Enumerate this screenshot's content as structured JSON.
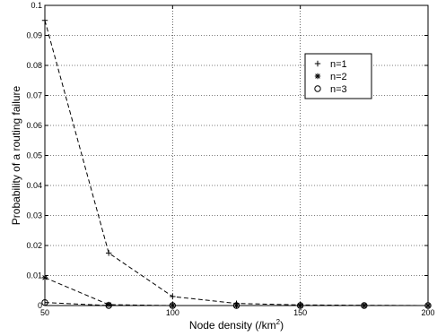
{
  "chart_data": {
    "type": "line",
    "title": "",
    "xlabel": "Node density (/km",
    "xlabel_sup": "2",
    "xlabel_suffix": ")",
    "ylabel": "Probability of a routing failure",
    "xlim": [
      50,
      200
    ],
    "ylim": [
      0,
      0.1
    ],
    "x_ticks": [
      "50",
      "100",
      "150",
      "200"
    ],
    "y_ticks": [
      "0",
      "0.01",
      "0.02",
      "0.03",
      "0.04",
      "0.05",
      "0.06",
      "0.07",
      "0.08",
      "0.09",
      "0.1"
    ],
    "grid": true,
    "legend_position": "upper-right",
    "line_style": "dashed",
    "x": [
      50,
      75,
      100,
      125,
      150,
      175,
      200
    ],
    "series": [
      {
        "name": "n=1",
        "marker": "plus",
        "values": [
          0.095,
          0.0175,
          0.003,
          0.0007,
          0.0002,
          0.0001,
          0.0
        ]
      },
      {
        "name": "n=2",
        "marker": "star",
        "values": [
          0.0093,
          0.0003,
          0.0,
          0.0,
          0.0,
          0.0,
          0.0
        ]
      },
      {
        "name": "n=3",
        "marker": "circle",
        "values": [
          0.001,
          0.0,
          0.0,
          0.0,
          0.0,
          0.0,
          0.0
        ]
      }
    ]
  }
}
